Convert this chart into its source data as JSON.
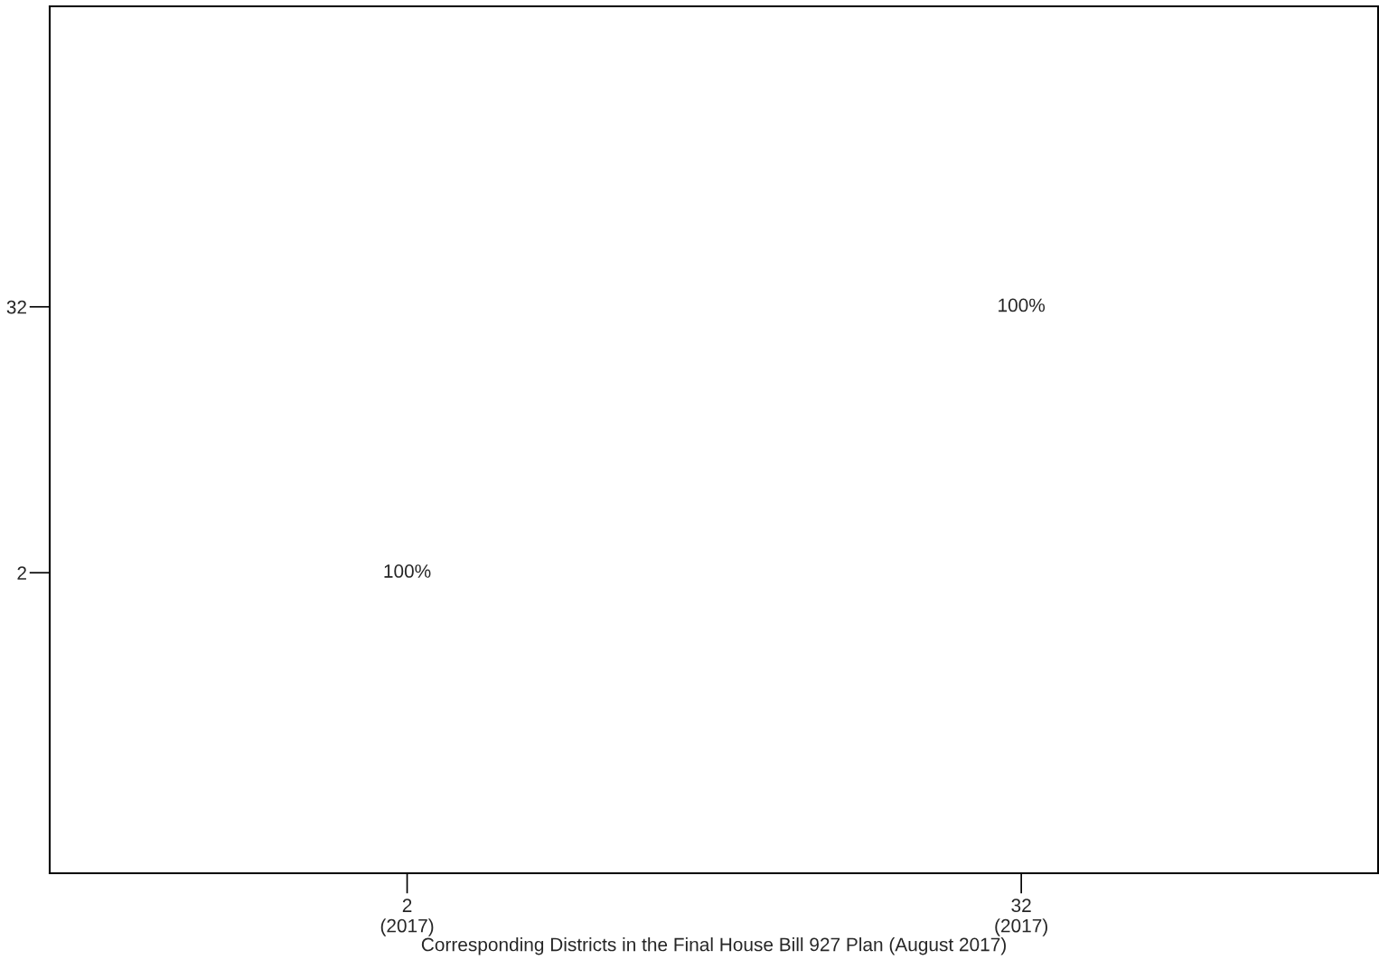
{
  "chart_data": {
    "type": "heatmap",
    "xlabel": "Corresponding Districts in the Final House Bill 927 Plan (August 2017)",
    "categories": [
      "2\n(2017)",
      "32\n(2017)"
    ],
    "y_categories": [
      "32",
      "2"
    ],
    "cells": [
      [
        null,
        100
      ],
      [
        100,
        null
      ]
    ],
    "cell_labels": [
      [
        null,
        "100%"
      ],
      [
        "100%",
        null
      ]
    ],
    "grid": false
  }
}
